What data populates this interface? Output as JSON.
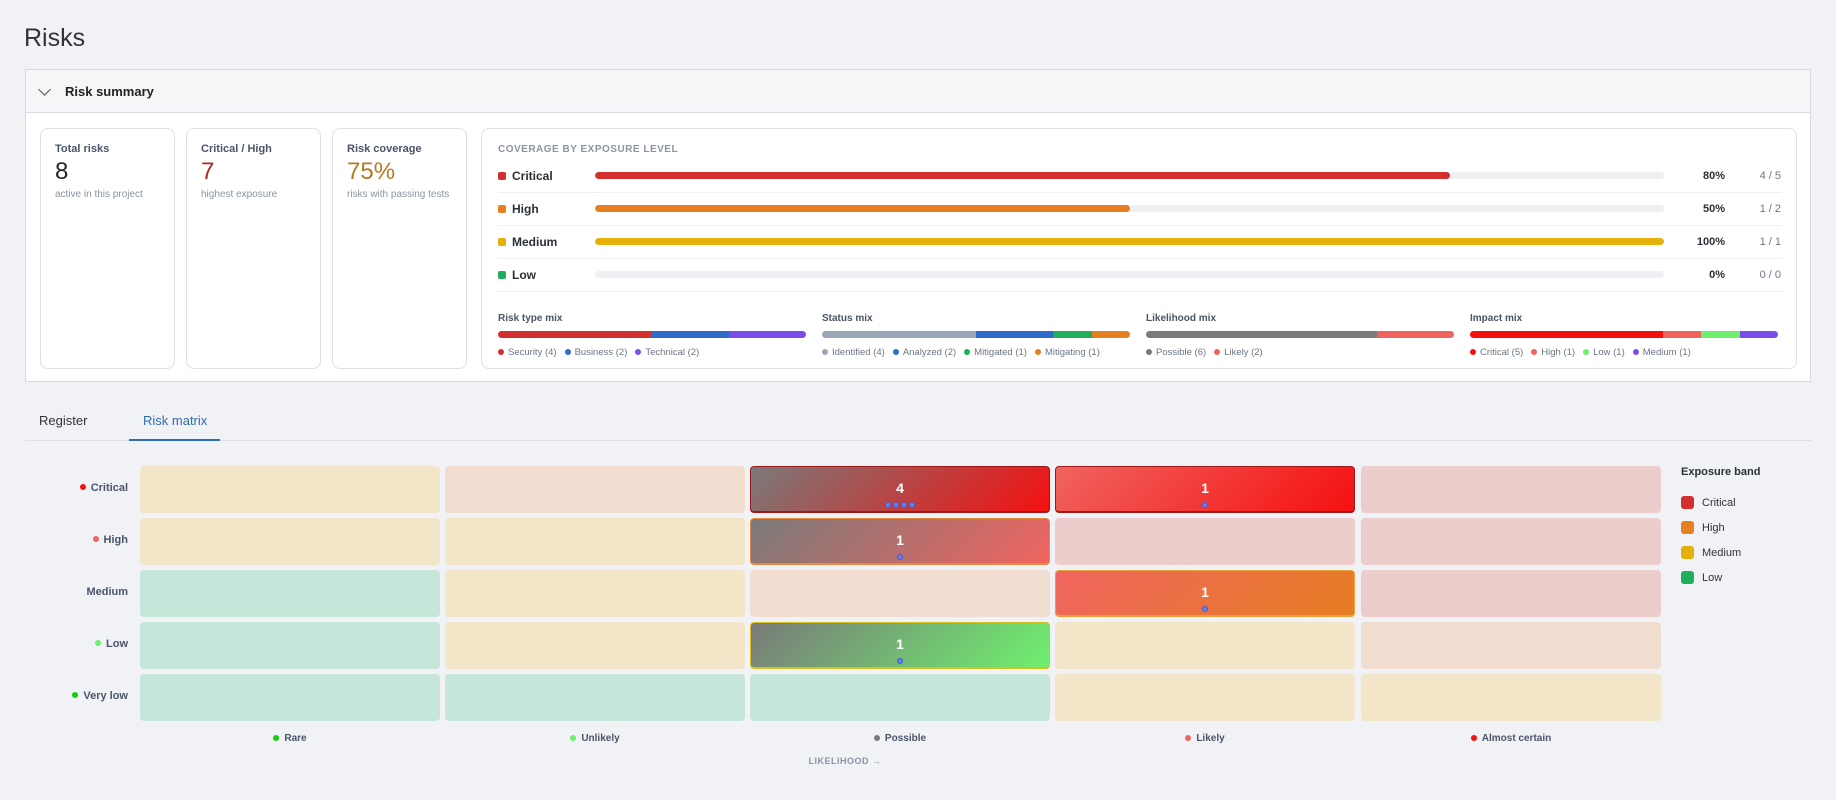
{
  "page": {
    "title": "Risks"
  },
  "summary": {
    "header": "Risk summary",
    "cards": [
      {
        "title": "Total risks",
        "value": "8",
        "sub": "active in this project",
        "color": "#1e2430"
      },
      {
        "title": "Critical / High",
        "value": "7",
        "sub": "highest exposure",
        "color": "#b3261e"
      },
      {
        "title": "Risk coverage",
        "value": "75%",
        "sub": "risks with passing tests",
        "color": "#b7791f"
      }
    ],
    "coverage": {
      "title": "COVERAGE BY EXPOSURE LEVEL",
      "rows": [
        {
          "name": "Critical",
          "pct": "80%",
          "count": "4 / 5",
          "fraction": 0.8,
          "color": "#d32f2f"
        },
        {
          "name": "High",
          "pct": "50%",
          "count": "1 / 2",
          "fraction": 0.5,
          "color": "#e67e22"
        },
        {
          "name": "Medium",
          "pct": "100%",
          "count": "1 / 1",
          "fraction": 1.0,
          "color": "#e6b00a"
        },
        {
          "name": "Low",
          "pct": "0%",
          "count": "0 / 0",
          "fraction": 0.0,
          "color": "#1fae5b"
        }
      ]
    },
    "mixes": [
      {
        "title": "Risk type mix",
        "items": [
          {
            "label": "Security (4)",
            "count": 4,
            "color": "#d32f2f"
          },
          {
            "label": "Business (2)",
            "count": 2,
            "color": "#2f6cc9"
          },
          {
            "label": "Technical (2)",
            "count": 2,
            "color": "#7b4de8"
          }
        ]
      },
      {
        "title": "Status mix",
        "items": [
          {
            "label": "Identified (4)",
            "count": 4,
            "color": "#9aa5b8"
          },
          {
            "label": "Analyzed (2)",
            "count": 2,
            "color": "#2f6cc9"
          },
          {
            "label": "Mitigated (1)",
            "count": 1,
            "color": "#1fae5b"
          },
          {
            "label": "Mitigating (1)",
            "count": 1,
            "color": "#e67e22"
          }
        ]
      },
      {
        "title": "Likelihood mix",
        "items": [
          {
            "label": "Possible (6)",
            "count": 6,
            "color": "#7a7a7a"
          },
          {
            "label": "Likely (2)",
            "count": 2,
            "color": "#f0645f"
          }
        ]
      },
      {
        "title": "Impact mix",
        "items": [
          {
            "label": "Critical (5)",
            "count": 5,
            "color": "#f51010"
          },
          {
            "label": "High (1)",
            "count": 1,
            "color": "#f0645f"
          },
          {
            "label": "Low (1)",
            "count": 1,
            "color": "#6ef06e"
          },
          {
            "label": "Medium (1)",
            "count": 1,
            "color": "#7b4de8"
          }
        ]
      }
    ]
  },
  "tabs": [
    {
      "label": "Register",
      "active": false
    },
    {
      "label": "Risk matrix",
      "active": true
    }
  ],
  "matrix": {
    "rows": [
      {
        "label": "Critical",
        "color": "#f51010"
      },
      {
        "label": "High",
        "color": "#f0645f"
      },
      {
        "label": "Medium",
        "color": ""
      },
      {
        "label": "Low",
        "color": "#6ef06e"
      },
      {
        "label": "Very low",
        "color": "#10d010"
      }
    ],
    "cols": [
      {
        "label": "Rare",
        "color": "#10d010"
      },
      {
        "label": "Unlikely",
        "color": "#6ef06e"
      },
      {
        "label": "Possible",
        "color": "#7a7a7a"
      },
      {
        "label": "Likely",
        "color": "#f0645f"
      },
      {
        "label": "Almost certain",
        "color": "#f51010"
      }
    ],
    "axis_label": "LIKELIHOOD →",
    "cells": [
      [
        {
          "bg": "#f2e5c8"
        },
        {
          "bg": "#f0ddd0"
        },
        {
          "count": "4",
          "pips": 4,
          "grad": [
            "#7a7a7a",
            "#f51010"
          ],
          "border": "#a01818"
        },
        {
          "count": "1",
          "pips": 1,
          "grad": [
            "#f0645f",
            "#f51010"
          ],
          "border": "#a01818"
        },
        {
          "bg": "#edcdcc"
        }
      ],
      [
        {
          "bg": "#f2e5c8"
        },
        {
          "bg": "#f2e5c8"
        },
        {
          "count": "1",
          "pips": 1,
          "grad": [
            "#7a7a7a",
            "#f0645f"
          ],
          "border": "#e88a3c"
        },
        {
          "bg": "#edcdcc"
        },
        {
          "bg": "#edcdcc"
        }
      ],
      [
        {
          "bg": "#c6e6da"
        },
        {
          "bg": "#f2e5c8"
        },
        {
          "bg": "#f0ddd0"
        },
        {
          "count": "1",
          "pips": 1,
          "grad": [
            "#f0645f",
            "#e67e22"
          ],
          "border": "#e8a23c"
        },
        {
          "bg": "#edcdcc"
        }
      ],
      [
        {
          "bg": "#c6e6da"
        },
        {
          "bg": "#f2e5c8"
        },
        {
          "count": "1",
          "pips": 1,
          "grad": [
            "#7a7a7a",
            "#6ef06e"
          ],
          "border": "#d8c020"
        },
        {
          "bg": "#f2e5c8"
        },
        {
          "bg": "#f0ddd0"
        }
      ],
      [
        {
          "bg": "#c6e6da"
        },
        {
          "bg": "#c6e6da"
        },
        {
          "bg": "#c6e6da"
        },
        {
          "bg": "#f2e5c8"
        },
        {
          "bg": "#f2e5c8"
        }
      ]
    ],
    "legend": {
      "title": "Exposure band",
      "items": [
        {
          "label": "Critical",
          "color": "#d32f2f"
        },
        {
          "label": "High",
          "color": "#e67e22"
        },
        {
          "label": "Medium",
          "color": "#e6b00a"
        },
        {
          "label": "Low",
          "color": "#1fae5b"
        }
      ]
    }
  }
}
